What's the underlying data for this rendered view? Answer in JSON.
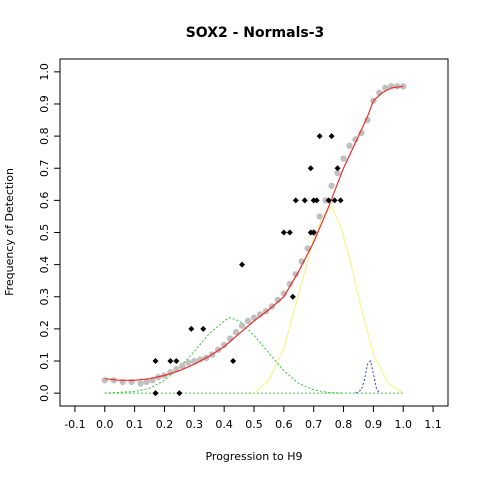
{
  "chart_data": {
    "type": "scatter",
    "title": "SOX2 - Normals-3",
    "xlabel": "Progression to H9",
    "ylabel": "Frequency of Detection",
    "xlim": [
      -0.15,
      1.15
    ],
    "ylim": [
      -0.04,
      1.04
    ],
    "xticks": [
      "-0.1",
      "0.0",
      "0.1",
      "0.2",
      "0.3",
      "0.4",
      "0.5",
      "0.6",
      "0.7",
      "0.8",
      "0.9",
      "1.0",
      "1.1"
    ],
    "yticks": [
      "0.0",
      "0.1",
      "0.2",
      "0.3",
      "0.4",
      "0.5",
      "0.6",
      "0.7",
      "0.8",
      "0.9",
      "1.0"
    ],
    "grid": false,
    "legend": "none",
    "colors": {
      "smoothed_points": "#c0c0c0",
      "observed_points": "#000000",
      "fit_curve": "#e8312b",
      "component_1": "#35c435",
      "component_2": "#f4f47a",
      "component_3": "#3a3ad6",
      "baseline": "#35c435"
    },
    "series": [
      {
        "kind": "observed",
        "x": [
          0.17,
          0.17,
          0.22,
          0.24,
          0.25,
          0.29,
          0.33,
          0.43,
          0.46,
          0.6,
          0.62,
          0.63,
          0.64,
          0.67,
          0.69,
          0.69,
          0.7,
          0.7,
          0.71,
          0.72,
          0.75,
          0.76,
          0.77,
          0.78,
          0.79
        ],
        "y": [
          0.1,
          0.0,
          0.1,
          0.1,
          0.0,
          0.2,
          0.2,
          0.1,
          0.4,
          0.5,
          0.5,
          0.3,
          0.6,
          0.6,
          0.5,
          0.7,
          0.6,
          0.5,
          0.6,
          0.8,
          0.6,
          0.8,
          0.6,
          0.7,
          0.6
        ]
      },
      {
        "kind": "smoothed",
        "x": [
          0.0,
          0.03,
          0.06,
          0.09,
          0.12,
          0.14,
          0.16,
          0.18,
          0.2,
          0.22,
          0.24,
          0.26,
          0.28,
          0.3,
          0.32,
          0.34,
          0.36,
          0.38,
          0.4,
          0.42,
          0.44,
          0.46,
          0.48,
          0.5,
          0.52,
          0.54,
          0.56,
          0.58,
          0.6,
          0.62,
          0.64,
          0.66,
          0.68,
          0.7,
          0.72,
          0.74,
          0.76,
          0.78,
          0.8,
          0.82,
          0.84,
          0.86,
          0.88,
          0.9,
          0.92,
          0.94,
          0.96,
          0.98,
          1.0
        ],
        "y": [
          0.04,
          0.04,
          0.035,
          0.035,
          0.03,
          0.035,
          0.04,
          0.05,
          0.055,
          0.065,
          0.075,
          0.085,
          0.095,
          0.1,
          0.105,
          0.11,
          0.12,
          0.135,
          0.15,
          0.17,
          0.19,
          0.21,
          0.225,
          0.235,
          0.245,
          0.255,
          0.27,
          0.29,
          0.31,
          0.34,
          0.37,
          0.41,
          0.45,
          0.5,
          0.55,
          0.6,
          0.645,
          0.685,
          0.73,
          0.77,
          0.79,
          0.81,
          0.85,
          0.91,
          0.935,
          0.95,
          0.955,
          0.955,
          0.955
        ]
      },
      {
        "kind": "fit",
        "x": [
          0.0,
          0.05,
          0.1,
          0.15,
          0.2,
          0.25,
          0.3,
          0.35,
          0.4,
          0.45,
          0.5,
          0.55,
          0.6,
          0.65,
          0.7,
          0.75,
          0.8,
          0.85,
          0.88,
          0.9,
          0.93,
          0.96,
          1.0
        ],
        "y": [
          0.045,
          0.04,
          0.04,
          0.045,
          0.055,
          0.07,
          0.09,
          0.115,
          0.145,
          0.185,
          0.225,
          0.26,
          0.3,
          0.38,
          0.47,
          0.58,
          0.7,
          0.8,
          0.86,
          0.91,
          0.935,
          0.95,
          0.955
        ]
      },
      {
        "kind": "component",
        "x": [
          0.0,
          0.1,
          0.15,
          0.2,
          0.25,
          0.3,
          0.35,
          0.4,
          0.42,
          0.45,
          0.5,
          0.55,
          0.6,
          0.65,
          0.7,
          0.75,
          0.8
        ],
        "y": [
          0.0,
          0.005,
          0.015,
          0.04,
          0.08,
          0.13,
          0.185,
          0.225,
          0.235,
          0.225,
          0.18,
          0.125,
          0.07,
          0.03,
          0.01,
          0.002,
          0.0
        ]
      },
      {
        "kind": "component",
        "x": [
          0.5,
          0.55,
          0.6,
          0.65,
          0.7,
          0.73,
          0.76,
          0.79,
          0.82,
          0.85,
          0.9,
          0.95,
          1.0
        ],
        "y": [
          0.0,
          0.04,
          0.14,
          0.31,
          0.48,
          0.55,
          0.58,
          0.52,
          0.42,
          0.3,
          0.12,
          0.03,
          0.0
        ]
      },
      {
        "kind": "component",
        "x": [
          0.84,
          0.86,
          0.87,
          0.88,
          0.89,
          0.9,
          0.91,
          0.92
        ],
        "y": [
          0.0,
          0.01,
          0.04,
          0.09,
          0.1,
          0.06,
          0.015,
          0.0
        ]
      },
      {
        "kind": "baseline",
        "x": [
          0.0,
          1.0
        ],
        "y": [
          0.0,
          0.0
        ]
      }
    ]
  }
}
